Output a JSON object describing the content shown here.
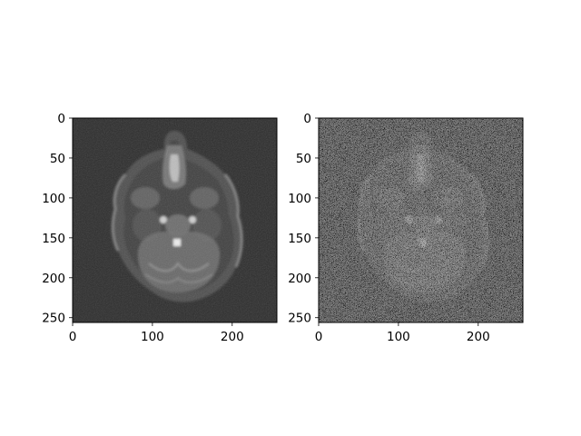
{
  "chart_data": [
    {
      "type": "image",
      "title": "",
      "description": "Axial MRI brain slice (original)",
      "xlabel": "",
      "ylabel": "",
      "xlim": [
        0,
        255
      ],
      "ylim": [
        255,
        0
      ],
      "xticks": [
        0,
        100,
        200
      ],
      "yticks": [
        0,
        50,
        100,
        150,
        200,
        250
      ],
      "colormap": "gray",
      "noise_level": "low"
    },
    {
      "type": "image",
      "title": "",
      "description": "Axial MRI brain slice with heavy additive noise",
      "xlabel": "",
      "ylabel": "",
      "xlim": [
        0,
        255
      ],
      "ylim": [
        255,
        0
      ],
      "xticks": [
        0,
        100,
        200
      ],
      "yticks": [
        0,
        50,
        100,
        150,
        200,
        250
      ],
      "colormap": "gray",
      "noise_level": "high"
    }
  ],
  "colors": {
    "background": "#2a2a2a",
    "axis": "#000000",
    "figure_bg": "#ffffff"
  }
}
